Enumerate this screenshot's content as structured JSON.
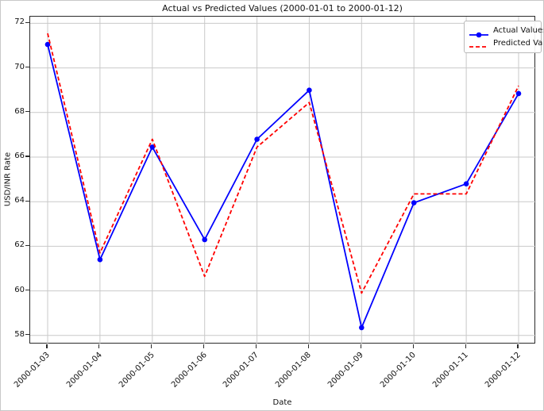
{
  "chart_data": {
    "type": "line",
    "title": "Actual vs Predicted Values (2000-01-01 to 2000-01-12)",
    "xlabel": "Date",
    "ylabel": "USD/INR Rate",
    "categories": [
      "2000-01-03",
      "2000-01-04",
      "2000-01-05",
      "2000-01-06",
      "2000-01-07",
      "2000-01-08",
      "2000-01-09",
      "2000-01-10",
      "2000-01-11",
      "2000-01-12"
    ],
    "series": [
      {
        "name": "Actual Values",
        "color": "#0000ff",
        "style": "solid",
        "marker": "circle",
        "values": [
          71.05,
          61.4,
          66.45,
          62.3,
          66.8,
          69.0,
          58.35,
          63.95,
          64.8,
          68.85
        ]
      },
      {
        "name": "Predicted Values",
        "color": "#ff0000",
        "style": "dashed",
        "marker": "none",
        "values": [
          71.55,
          61.7,
          66.8,
          60.65,
          66.45,
          68.45,
          59.9,
          64.35,
          64.35,
          69.2
        ]
      }
    ],
    "ylim": [
      57.6,
      72.3
    ],
    "yticks": [
      58,
      60,
      62,
      64,
      66,
      68,
      70,
      72
    ],
    "grid": true,
    "grid_color": "#c9c9c9",
    "legend_position": "upper right"
  }
}
